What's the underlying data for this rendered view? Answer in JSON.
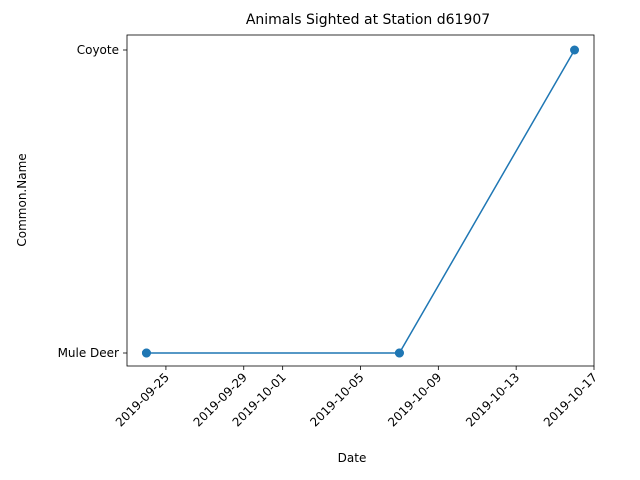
{
  "chart_data": {
    "type": "line",
    "title": "Animals Sighted at Station d61907",
    "xlabel": "Date",
    "ylabel": "Common.Name",
    "x_ticks": [
      "2019-09-25",
      "2019-09-29",
      "2019-10-01",
      "2019-10-05",
      "2019-10-09",
      "2019-10-13",
      "2019-10-17"
    ],
    "y_categories": [
      "Mule Deer",
      "Coyote"
    ],
    "xlim": [
      "2019-09-23",
      "2019-10-17"
    ],
    "grid": false,
    "series": [
      {
        "color": "#1f77b4",
        "marker": "circle",
        "points": [
          {
            "x": "2019-09-24",
            "y": "Mule Deer"
          },
          {
            "x": "2019-09-24",
            "y": "Mule Deer"
          },
          {
            "x": "2019-10-07",
            "y": "Mule Deer"
          },
          {
            "x": "2019-10-07",
            "y": "Mule Deer"
          },
          {
            "x": "2019-10-16",
            "y": "Coyote"
          }
        ]
      }
    ]
  }
}
